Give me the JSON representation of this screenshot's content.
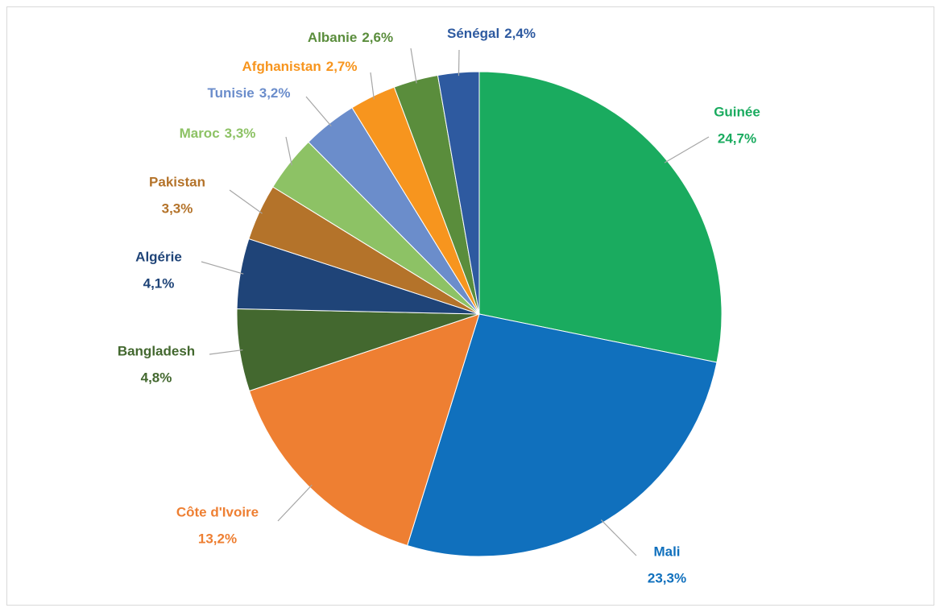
{
  "chart_data": {
    "type": "pie",
    "categories": [
      "Guinée",
      "Mali",
      "Côte d'Ivoire",
      "Bangladesh",
      "Algérie",
      "Pakistan",
      "Maroc",
      "Tunisie",
      "Afghanistan",
      "Albanie",
      "Sénégal"
    ],
    "values": [
      24.7,
      23.3,
      13.2,
      4.8,
      4.1,
      3.3,
      3.3,
      3.2,
      2.7,
      2.6,
      2.4
    ],
    "value_labels": [
      "24,7%",
      "23,3%",
      "13,2%",
      "4,8%",
      "4,1%",
      "3,3%",
      "3,3%",
      "3,2%",
      "2,7%",
      "2,6%",
      "2,4%"
    ],
    "colors": [
      "#1aab5f",
      "#1070bd",
      "#ee7f32",
      "#43682f",
      "#1f4478",
      "#b4732a",
      "#8dc265",
      "#6b8dcb",
      "#f7951e",
      "#5a8d3c",
      "#2e5aa0"
    ]
  }
}
